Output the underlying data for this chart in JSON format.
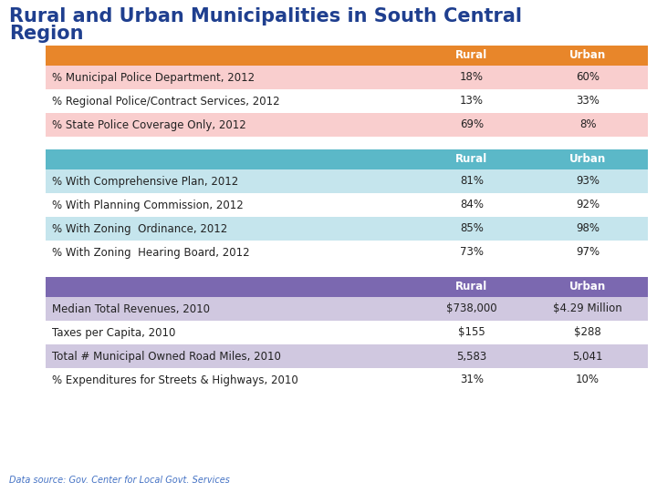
{
  "title_line1": "Rural and Urban Municipalities in South Central",
  "title_line2": "Region",
  "title_color": "#1F3F8F",
  "bg_color": "#FFFFFF",
  "footnote": "Data source: Gov. Center for Local Govt. Services",
  "footnote_color": "#4472C4",
  "table1": {
    "header_bg": "#E8862A",
    "header_text": "#FFFFFF",
    "row_bg_odd": "#F9CECE",
    "row_bg_even": "#FFFFFF",
    "col_rural": "Rural",
    "col_urban": "Urban",
    "rows": [
      [
        "% Municipal Police Department, 2012",
        "18%",
        "60%"
      ],
      [
        "% Regional Police/Contract Services, 2012",
        "13%",
        "33%"
      ],
      [
        "% State Police Coverage Only, 2012",
        "69%",
        "8%"
      ]
    ]
  },
  "table2": {
    "header_bg": "#5BB8C8",
    "header_text": "#FFFFFF",
    "row_bg_odd": "#C5E5ED",
    "row_bg_even": "#FFFFFF",
    "col_rural": "Rural",
    "col_urban": "Urban",
    "rows": [
      [
        "% With Comprehensive Plan, 2012",
        "81%",
        "93%"
      ],
      [
        "% With Planning Commission, 2012",
        "84%",
        "92%"
      ],
      [
        "% With Zoning  Ordinance, 2012",
        "85%",
        "98%"
      ],
      [
        "% With Zoning  Hearing Board, 2012",
        "73%",
        "97%"
      ]
    ]
  },
  "table3": {
    "header_bg": "#7B68B0",
    "header_text": "#FFFFFF",
    "row_bg_odd": "#D0C8E0",
    "row_bg_even": "#FFFFFF",
    "col_rural": "Rural",
    "col_urban": "Urban",
    "rows": [
      [
        "Median Total Revenues, 2010",
        "$738,000",
        "$4.29 Million"
      ],
      [
        "Taxes per Capita, 2010",
        "$155",
        "$288"
      ],
      [
        "Total # Municipal Owned Road Miles, 2010",
        "5,583",
        "5,041"
      ],
      [
        "% Expenditures for Streets & Highways, 2010",
        "31%",
        "10%"
      ]
    ]
  }
}
